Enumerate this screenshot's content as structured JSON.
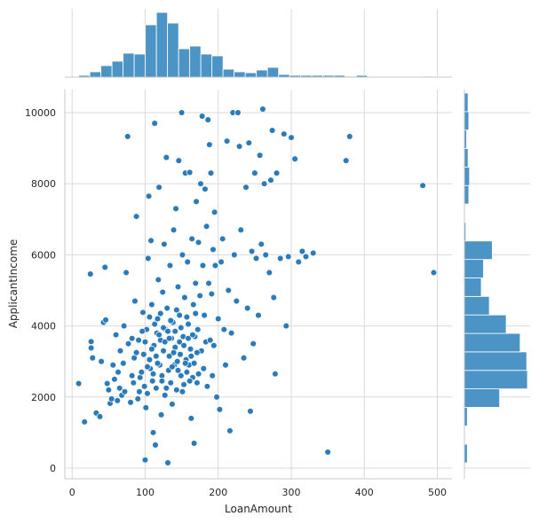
{
  "chart_data": {
    "type": "scatter",
    "xlabel": "LoanAmount",
    "ylabel": "ApplicantIncome",
    "xlim": [
      -10,
      520
    ],
    "ylim": [
      -300,
      10650
    ],
    "x_ticks": [
      0,
      100,
      200,
      300,
      400,
      500
    ],
    "y_ticks": [
      0,
      2000,
      4000,
      6000,
      8000,
      10000
    ],
    "grid": true,
    "point_color": "#2b7bba",
    "bar_color": "#4c94c6",
    "points": [
      [
        9,
        2380
      ],
      [
        17,
        1300
      ],
      [
        25,
        5460
      ],
      [
        26,
        3560
      ],
      [
        26,
        3380
      ],
      [
        28,
        3100
      ],
      [
        33,
        1550
      ],
      [
        38,
        1450
      ],
      [
        40,
        3000
      ],
      [
        43,
        4100
      ],
      [
        45,
        5650
      ],
      [
        46,
        4170
      ],
      [
        48,
        2380
      ],
      [
        50,
        2200
      ],
      [
        52,
        1820
      ],
      [
        54,
        1950
      ],
      [
        56,
        2900
      ],
      [
        58,
        2500
      ],
      [
        60,
        3750
      ],
      [
        62,
        1900
      ],
      [
        63,
        2700
      ],
      [
        65,
        2250
      ],
      [
        66,
        3300
      ],
      [
        68,
        2050
      ],
      [
        70,
        2950
      ],
      [
        71,
        4000
      ],
      [
        72,
        2150
      ],
      [
        74,
        5500
      ],
      [
        76,
        9330
      ],
      [
        77,
        3500
      ],
      [
        80,
        1850
      ],
      [
        82,
        2600
      ],
      [
        84,
        2400
      ],
      [
        85,
        3100
      ],
      [
        86,
        4700
      ],
      [
        88,
        7080
      ],
      [
        90,
        1950
      ],
      [
        91,
        3600
      ],
      [
        93,
        2550
      ],
      [
        95,
        2700
      ],
      [
        97,
        4380
      ],
      [
        98,
        3200
      ],
      [
        99,
        2300
      ],
      [
        100,
        230
      ],
      [
        101,
        1700
      ],
      [
        102,
        3900
      ],
      [
        103,
        2100
      ],
      [
        104,
        5900
      ],
      [
        105,
        7650
      ],
      [
        106,
        3050
      ],
      [
        107,
        2800
      ],
      [
        108,
        6400
      ],
      [
        109,
        4600
      ],
      [
        110,
        2450
      ],
      [
        111,
        1000
      ],
      [
        112,
        3450
      ],
      [
        113,
        9700
      ],
      [
        114,
        650
      ],
      [
        115,
        2250
      ],
      [
        116,
        3800
      ],
      [
        117,
        4200
      ],
      [
        118,
        5300
      ],
      [
        119,
        7900
      ],
      [
        120,
        2900
      ],
      [
        121,
        3600
      ],
      [
        122,
        1500
      ],
      [
        123,
        2600
      ],
      [
        124,
        4950
      ],
      [
        125,
        3300
      ],
      [
        126,
        6300
      ],
      [
        127,
        2050
      ],
      [
        128,
        3900
      ],
      [
        129,
        8740
      ],
      [
        130,
        4500
      ],
      [
        131,
        150
      ],
      [
        132,
        2750
      ],
      [
        133,
        3150
      ],
      [
        134,
        5700
      ],
      [
        135,
        2400
      ],
      [
        136,
        3650
      ],
      [
        137,
        1800
      ],
      [
        138,
        4100
      ],
      [
        139,
        6700
      ],
      [
        140,
        2900
      ],
      [
        141,
        3400
      ],
      [
        142,
        7300
      ],
      [
        143,
        2200
      ],
      [
        144,
        3000
      ],
      [
        145,
        5100
      ],
      [
        146,
        8650
      ],
      [
        147,
        4300
      ],
      [
        148,
        3200
      ],
      [
        149,
        2600
      ],
      [
        150,
        10000
      ],
      [
        151,
        6000
      ],
      [
        152,
        3700
      ],
      [
        153,
        2350
      ],
      [
        154,
        4800
      ],
      [
        155,
        8300
      ],
      [
        156,
        3050
      ],
      [
        157,
        2700
      ],
      [
        158,
        5800
      ],
      [
        159,
        4050
      ],
      [
        160,
        2900
      ],
      [
        161,
        8320
      ],
      [
        162,
        3350
      ],
      [
        163,
        1400
      ],
      [
        164,
        6450
      ],
      [
        165,
        2550
      ],
      [
        166,
        4600
      ],
      [
        167,
        700
      ],
      [
        168,
        3700
      ],
      [
        169,
        5200
      ],
      [
        170,
        7500
      ],
      [
        171,
        2400
      ],
      [
        172,
        3900
      ],
      [
        173,
        6350
      ],
      [
        174,
        2650
      ],
      [
        175,
        4850
      ],
      [
        176,
        8000
      ],
      [
        177,
        3300
      ],
      [
        178,
        9900
      ],
      [
        179,
        5700
      ],
      [
        180,
        2800
      ],
      [
        181,
        4300
      ],
      [
        182,
        7850
      ],
      [
        183,
        3550
      ],
      [
        184,
        6800
      ],
      [
        185,
        2300
      ],
      [
        186,
        9800
      ],
      [
        187,
        5200
      ],
      [
        188,
        9100
      ],
      [
        189,
        3600
      ],
      [
        190,
        8300
      ],
      [
        191,
        4900
      ],
      [
        192,
        2600
      ],
      [
        193,
        6150
      ],
      [
        194,
        3450
      ],
      [
        195,
        7200
      ],
      [
        196,
        5700
      ],
      [
        198,
        2000
      ],
      [
        200,
        4200
      ],
      [
        202,
        1650
      ],
      [
        204,
        5800
      ],
      [
        206,
        6450
      ],
      [
        208,
        3900
      ],
      [
        210,
        2900
      ],
      [
        212,
        9200
      ],
      [
        214,
        5000
      ],
      [
        216,
        1050
      ],
      [
        218,
        3800
      ],
      [
        220,
        10000
      ],
      [
        222,
        6000
      ],
      [
        225,
        4700
      ],
      [
        227,
        10000
      ],
      [
        229,
        9050
      ],
      [
        231,
        6700
      ],
      [
        235,
        3100
      ],
      [
        238,
        7900
      ],
      [
        240,
        4500
      ],
      [
        242,
        9150
      ],
      [
        244,
        1600
      ],
      [
        246,
        6100
      ],
      [
        248,
        3500
      ],
      [
        250,
        8300
      ],
      [
        252,
        5900
      ],
      [
        255,
        4300
      ],
      [
        257,
        8800
      ],
      [
        259,
        6300
      ],
      [
        261,
        10100
      ],
      [
        263,
        8000
      ],
      [
        265,
        6000
      ],
      [
        270,
        5500
      ],
      [
        272,
        8100
      ],
      [
        274,
        9500
      ],
      [
        276,
        4800
      ],
      [
        278,
        2650
      ],
      [
        280,
        8300
      ],
      [
        285,
        5900
      ],
      [
        290,
        9400
      ],
      [
        293,
        4000
      ],
      [
        296,
        5950
      ],
      [
        300,
        9300
      ],
      [
        305,
        8700
      ],
      [
        310,
        5800
      ],
      [
        315,
        6100
      ],
      [
        320,
        5950
      ],
      [
        330,
        6050
      ],
      [
        350,
        450
      ],
      [
        375,
        8650
      ],
      [
        380,
        9330
      ],
      [
        480,
        7950
      ],
      [
        495,
        5500
      ],
      [
        82,
        3650
      ],
      [
        88,
        3250
      ],
      [
        92,
        2150
      ],
      [
        96,
        3850
      ],
      [
        100,
        3550
      ],
      [
        103,
        2850
      ],
      [
        106,
        4250
      ],
      [
        109,
        3350
      ],
      [
        111,
        2650
      ],
      [
        113,
        4050
      ],
      [
        115,
        3150
      ],
      [
        117,
        2950
      ],
      [
        119,
        3750
      ],
      [
        121,
        4350
      ],
      [
        123,
        2450
      ],
      [
        125,
        3950
      ],
      [
        127,
        3550
      ],
      [
        129,
        2250
      ],
      [
        131,
        3850
      ],
      [
        133,
        3650
      ],
      [
        135,
        4150
      ],
      [
        137,
        2850
      ],
      [
        139,
        3250
      ],
      [
        141,
        3850
      ],
      [
        143,
        4450
      ],
      [
        145,
        2750
      ],
      [
        147,
        3550
      ],
      [
        149,
        3950
      ],
      [
        151,
        2150
      ],
      [
        153,
        3450
      ],
      [
        155,
        2950
      ],
      [
        157,
        4250
      ],
      [
        159,
        3650
      ],
      [
        161,
        2450
      ],
      [
        163,
        3150
      ],
      [
        165,
        3750
      ],
      [
        167,
        2950
      ],
      [
        169,
        4350
      ],
      [
        171,
        3250
      ],
      [
        173,
        2650
      ]
    ],
    "x_hist": {
      "bin_edges": [
        9,
        24.2,
        39.4,
        54.6,
        69.8,
        85,
        100.2,
        115.4,
        130.6,
        145.8,
        161,
        176.2,
        191.4,
        206.6,
        221.8,
        237,
        252.2,
        267.4,
        282.6,
        297.8,
        313,
        328.2,
        343.4,
        358.6,
        373.8,
        389,
        404.2,
        419.4,
        434.6,
        449.8,
        465,
        480.2,
        495.4
      ],
      "counts": [
        2,
        6,
        13,
        18,
        27,
        26,
        59,
        73,
        61,
        32,
        35,
        26,
        24,
        9,
        6,
        5,
        8,
        11,
        3,
        2,
        2,
        2,
        2,
        2,
        1,
        2,
        0,
        0,
        0,
        0,
        0,
        1
      ]
    },
    "y_hist": {
      "bin_edges": [
        150,
        670,
        1190,
        1710,
        2230,
        2750,
        3270,
        3790,
        4310,
        4830,
        5350,
        5870,
        6390,
        6910,
        7430,
        7950,
        8470,
        8990,
        9510,
        10030,
        10550
      ],
      "counts": [
        4,
        1,
        4,
        48,
        86,
        85,
        76,
        57,
        34,
        23,
        26,
        38,
        2,
        1,
        6,
        7,
        5,
        3,
        6,
        5
      ]
    }
  }
}
